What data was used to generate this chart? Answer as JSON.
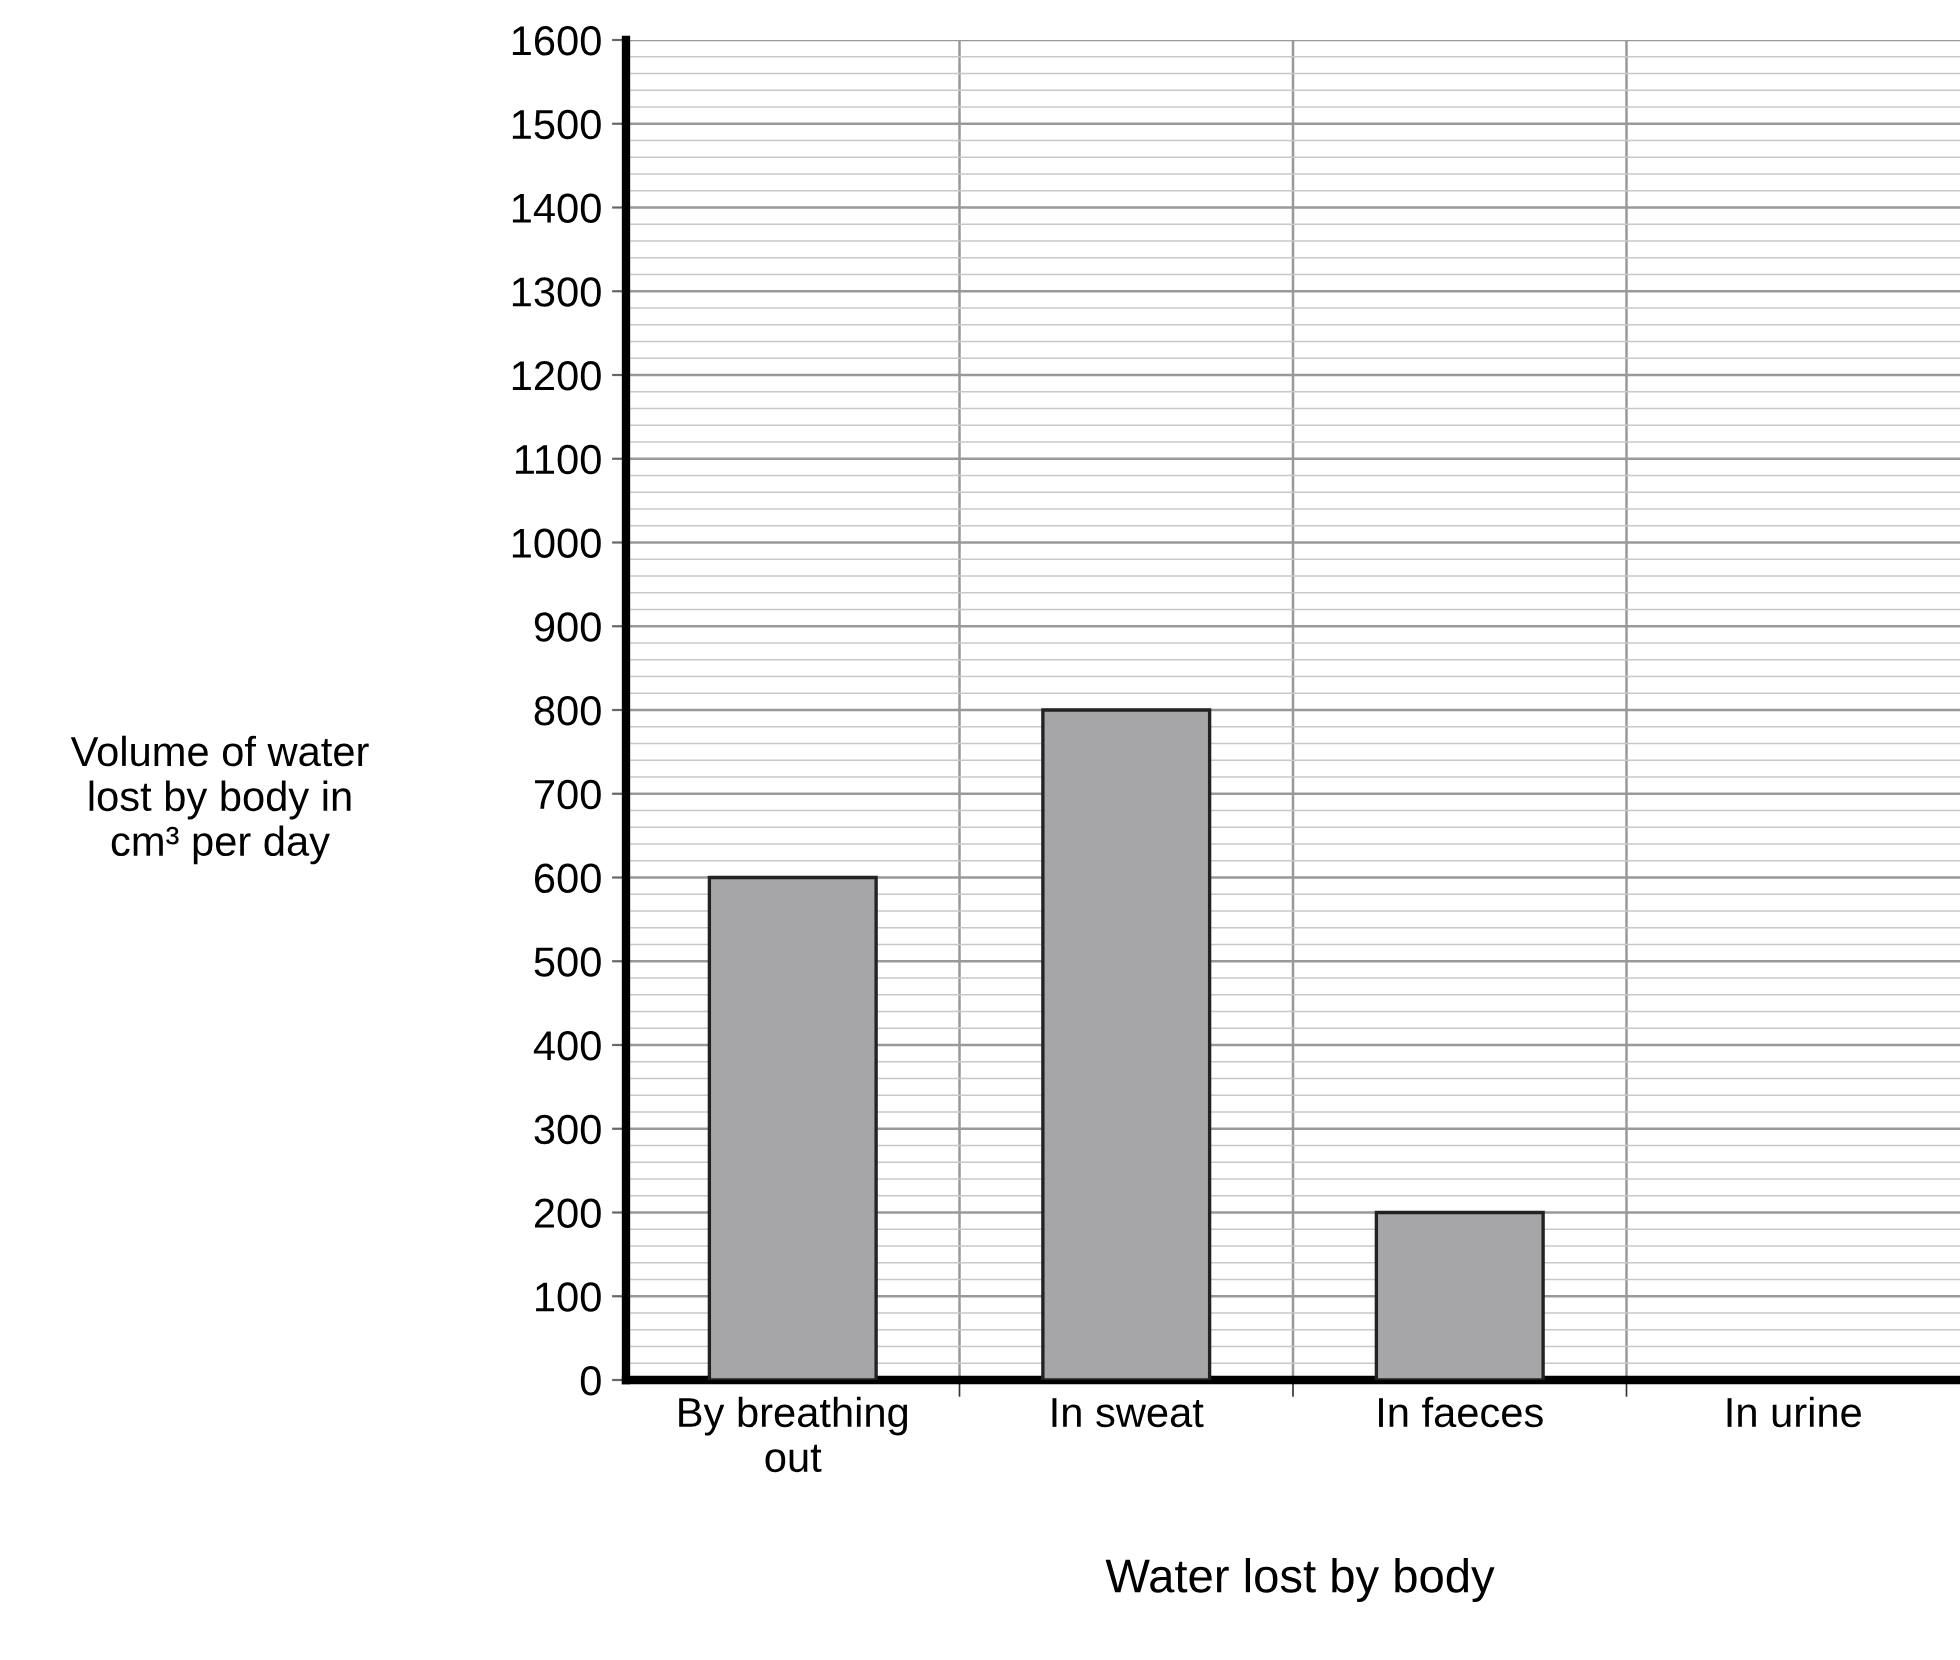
{
  "chart_data": {
    "type": "bar",
    "xlabel": "Water lost by body",
    "ylabel": "Volume of water\nlost by body in\ncm³ per day",
    "categories": [
      "By breathing\nout",
      "In sweat",
      "In faeces",
      "In urine"
    ],
    "values": [
      600,
      800,
      200,
      null
    ],
    "color": "#a6a6a8",
    "ylim": [
      0,
      1600
    ],
    "yticks": [
      0,
      100,
      200,
      300,
      400,
      500,
      600,
      700,
      800,
      900,
      1000,
      1100,
      1200,
      1300,
      1400,
      1500,
      1600
    ],
    "grid": true
  }
}
